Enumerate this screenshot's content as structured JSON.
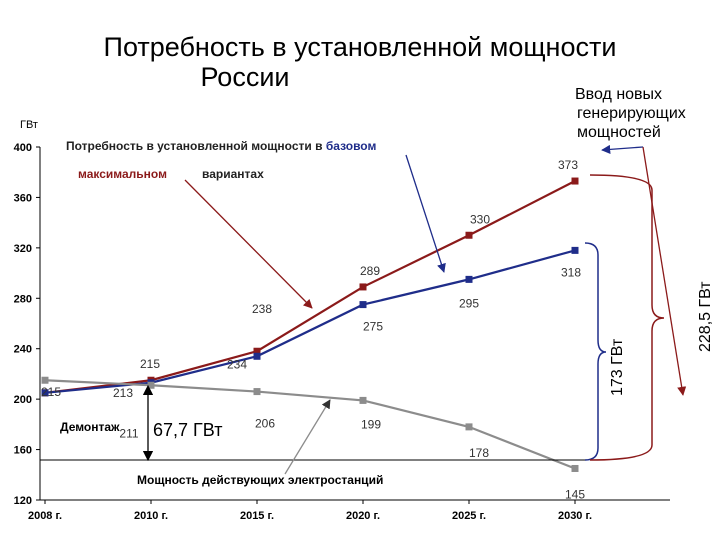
{
  "page_title_line1": "Потребность в установленной мощности",
  "page_title_line2": "России",
  "chart_data": {
    "type": "line",
    "title": "Потребность в установленной мощности России",
    "ylabel": "ГВт",
    "x": [
      "2008 г.",
      "2010 г.",
      "2015 г.",
      "2020 г.",
      "2025 г.",
      "2030 г."
    ],
    "ylim": [
      120,
      400
    ],
    "yticks": [
      120,
      160,
      200,
      240,
      280,
      320,
      360,
      400
    ],
    "grid": false,
    "series": [
      {
        "name": "максимальном",
        "color": "#8b1a1a",
        "values": [
          205,
          215,
          238,
          289,
          330,
          373
        ],
        "labels": [
          "",
          "215",
          "238",
          "289",
          "330",
          "373"
        ]
      },
      {
        "name": "базовом",
        "color": "#1f2d8a",
        "values": [
          205,
          213,
          234,
          275,
          295,
          318
        ],
        "labels": [
          "",
          "213",
          "234",
          "275",
          "295",
          "318"
        ]
      },
      {
        "name": "Мощность действующих электростанций",
        "color": "#8c8c8c",
        "values": [
          215,
          211,
          206,
          199,
          178,
          145
        ],
        "labels": [
          "215",
          "211",
          "206",
          "199",
          "178",
          "145"
        ]
      }
    ],
    "annotations": {
      "need_prefix": "Потребность в установленной мощности в",
      "base_word": "базовом",
      "max_word": "максимальном",
      "variants_word": "вариантах",
      "new_capacity": [
        "Ввод новых",
        "генерирующих",
        "мощностей"
      ],
      "decommission": "Демонтаж",
      "decommission_value": "67,7 ГВт",
      "existing_plants": "Мощность действующих электростанций",
      "bracket_base": "173 ГВт",
      "bracket_max": "228,5 ГВт"
    }
  }
}
